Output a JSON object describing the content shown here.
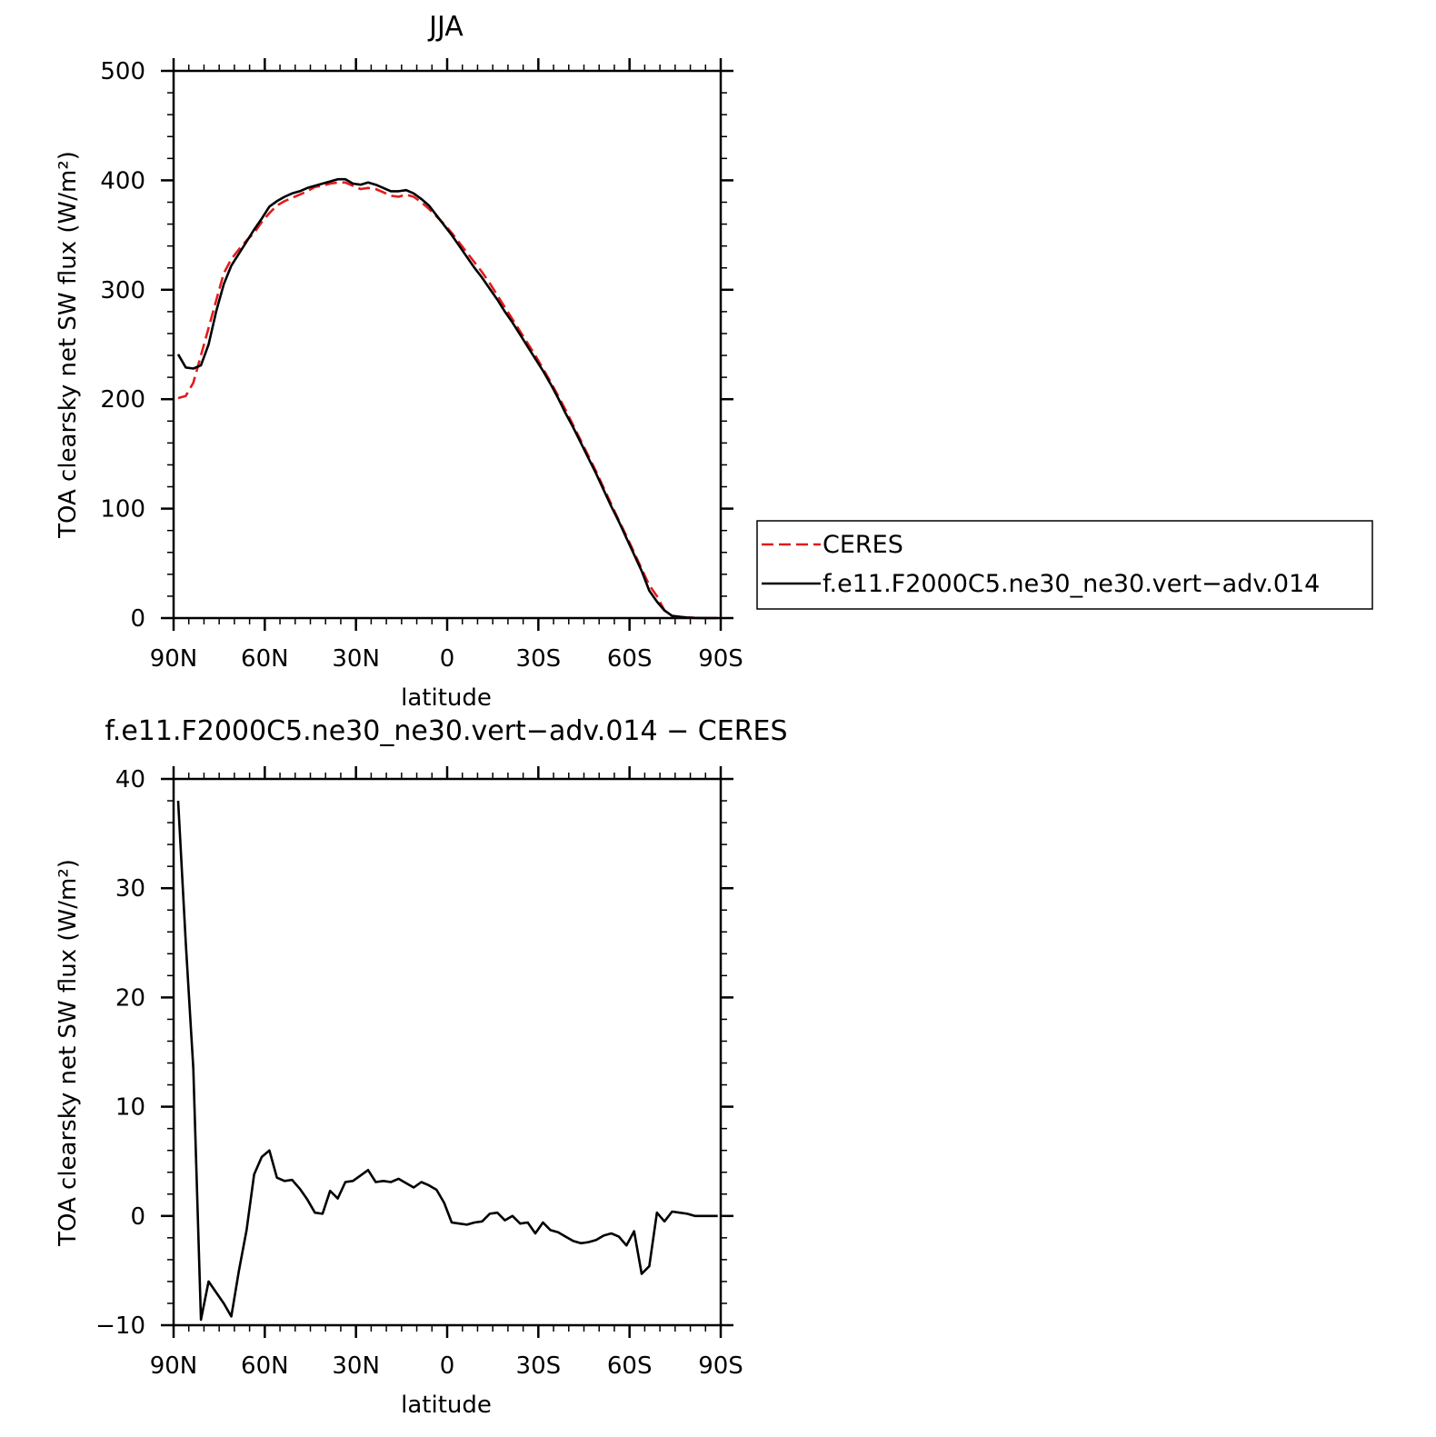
{
  "chart_data": [
    {
      "type": "line",
      "title": "JJA",
      "xlabel": "latitude",
      "ylabel": "TOA clearsky net SW flux (W/m²)",
      "xlim": [
        90,
        -90
      ],
      "ylim": [
        0,
        500
      ],
      "x_ticks": [
        {
          "value": 90,
          "label": "90N"
        },
        {
          "value": 60,
          "label": "60N"
        },
        {
          "value": 30,
          "label": "30N"
        },
        {
          "value": 0,
          "label": "0"
        },
        {
          "value": -30,
          "label": "30S"
        },
        {
          "value": -60,
          "label": "60S"
        },
        {
          "value": -90,
          "label": "90S"
        }
      ],
      "y_ticks": [
        {
          "value": 0,
          "label": "0"
        },
        {
          "value": 100,
          "label": "100"
        },
        {
          "value": 200,
          "label": "200"
        },
        {
          "value": 300,
          "label": "300"
        },
        {
          "value": 400,
          "label": "400"
        },
        {
          "value": 500,
          "label": "500"
        }
      ],
      "legend": {
        "placement": "right"
      },
      "series": [
        {
          "name": "CERES",
          "color": "#e41a1c",
          "style": "dashed",
          "points": [
            [
              88.5,
              201
            ],
            [
              86,
              203
            ],
            [
              83.5,
              215
            ],
            [
              81,
              240
            ],
            [
              78.5,
              265
            ],
            [
              76,
              290
            ],
            [
              73.5,
              315
            ],
            [
              71,
              328
            ],
            [
              68.5,
              337
            ],
            [
              66,
              345
            ],
            [
              63.5,
              352
            ],
            [
              61,
              362
            ],
            [
              58.5,
              370
            ],
            [
              56,
              377
            ],
            [
              53.5,
              381
            ],
            [
              51,
              384
            ],
            [
              48.5,
              387
            ],
            [
              46,
              390
            ],
            [
              43.5,
              394
            ],
            [
              41,
              395
            ],
            [
              38.5,
              397
            ],
            [
              36,
              398
            ],
            [
              33.5,
              398
            ],
            [
              31,
              395
            ],
            [
              28.5,
              392
            ],
            [
              26,
              393
            ],
            [
              23.5,
              392
            ],
            [
              21,
              389
            ],
            [
              18.5,
              386
            ],
            [
              16,
              385
            ],
            [
              13.5,
              387
            ],
            [
              11,
              385
            ],
            [
              8.5,
              380
            ],
            [
              6,
              374
            ],
            [
              3.5,
              367
            ],
            [
              1,
              360
            ],
            [
              -1.5,
              352
            ],
            [
              -4,
              343
            ],
            [
              -6.5,
              334
            ],
            [
              -9,
              325
            ],
            [
              -11.5,
              316
            ],
            [
              -14,
              306
            ],
            [
              -16.5,
              295
            ],
            [
              -19,
              284
            ],
            [
              -21.5,
              273
            ],
            [
              -24,
              262
            ],
            [
              -26.5,
              251
            ],
            [
              -29,
              240
            ],
            [
              -31.5,
              228
            ],
            [
              -34,
              216
            ],
            [
              -36.5,
              203
            ],
            [
              -39,
              190
            ],
            [
              -41.5,
              176
            ],
            [
              -44,
              162
            ],
            [
              -46.5,
              148
            ],
            [
              -49,
              134
            ],
            [
              -51.5,
              119
            ],
            [
              -54,
              104
            ],
            [
              -56.5,
              89
            ],
            [
              -59,
              75
            ],
            [
              -61.5,
              60
            ],
            [
              -64,
              45
            ],
            [
              -66.5,
              30
            ],
            [
              -69,
              20
            ],
            [
              -71.5,
              7
            ],
            [
              -74,
              2
            ],
            [
              -76.5,
              1
            ],
            [
              -79,
              0.5
            ],
            [
              -81.5,
              0.2
            ],
            [
              -84,
              0.1
            ],
            [
              -86.5,
              0
            ],
            [
              -89,
              0
            ]
          ]
        },
        {
          "name": "f.e11.F2000C5.ne30_ne30.vert−adv.014",
          "color": "#000000",
          "style": "solid",
          "points": [
            [
              88.5,
              241
            ],
            [
              86,
              229
            ],
            [
              83.5,
              228
            ],
            [
              81,
              231
            ],
            [
              78.5,
              250
            ],
            [
              76,
              280
            ],
            [
              73.5,
              305
            ],
            [
              71,
              322
            ],
            [
              68.5,
              333
            ],
            [
              66,
              344
            ],
            [
              63.5,
              355
            ],
            [
              61,
              365
            ],
            [
              58.5,
              376
            ],
            [
              56,
              381
            ],
            [
              53.5,
              385
            ],
            [
              51,
              388
            ],
            [
              48.5,
              390
            ],
            [
              46,
              393
            ],
            [
              43.5,
              395
            ],
            [
              41,
              397
            ],
            [
              38.5,
              399
            ],
            [
              36,
              401
            ],
            [
              33.5,
              401
            ],
            [
              31,
              397
            ],
            [
              28.5,
              396
            ],
            [
              26,
              398
            ],
            [
              23.5,
              396
            ],
            [
              21,
              393
            ],
            [
              18.5,
              390
            ],
            [
              16,
              390
            ],
            [
              13.5,
              391
            ],
            [
              11,
              388
            ],
            [
              8.5,
              383
            ],
            [
              6,
              377
            ],
            [
              3.5,
              368
            ],
            [
              1,
              359
            ],
            [
              -1.5,
              350
            ],
            [
              -4,
              340
            ],
            [
              -6.5,
              330
            ],
            [
              -9,
              320
            ],
            [
              -11.5,
              311
            ],
            [
              -14,
              301
            ],
            [
              -16.5,
              291
            ],
            [
              -19,
              280
            ],
            [
              -21.5,
              270
            ],
            [
              -24,
              259
            ],
            [
              -26.5,
              248
            ],
            [
              -29,
              237
            ],
            [
              -31.5,
              226
            ],
            [
              -34,
              214
            ],
            [
              -36.5,
              201
            ],
            [
              -39,
              187
            ],
            [
              -41.5,
              174
            ],
            [
              -44,
              160
            ],
            [
              -46.5,
              146
            ],
            [
              -49,
              132
            ],
            [
              -51.5,
              117
            ],
            [
              -54,
              102
            ],
            [
              -56.5,
              88
            ],
            [
              -59,
              73
            ],
            [
              -61.5,
              58
            ],
            [
              -64,
              43
            ],
            [
              -66.5,
              25
            ],
            [
              -69,
              15
            ],
            [
              -71.5,
              7
            ],
            [
              -74,
              2
            ],
            [
              -76.5,
              1.2
            ],
            [
              -79,
              0.5
            ],
            [
              -81.5,
              0.2
            ],
            [
              -84,
              0.1
            ],
            [
              -86.5,
              0
            ],
            [
              -89,
              0
            ]
          ]
        }
      ]
    },
    {
      "type": "line",
      "title": "f.e11.F2000C5.ne30_ne30.vert−adv.014 − CERES",
      "xlabel": "latitude",
      "ylabel": "TOA clearsky net SW flux (W/m²)",
      "xlim": [
        90,
        -90
      ],
      "ylim": [
        -10,
        40
      ],
      "x_ticks": [
        {
          "value": 90,
          "label": "90N"
        },
        {
          "value": 60,
          "label": "60N"
        },
        {
          "value": 30,
          "label": "30N"
        },
        {
          "value": 0,
          "label": "0"
        },
        {
          "value": -30,
          "label": "30S"
        },
        {
          "value": -60,
          "label": "60S"
        },
        {
          "value": -90,
          "label": "90S"
        }
      ],
      "y_ticks": [
        {
          "value": -10,
          "label": "−10"
        },
        {
          "value": 0,
          "label": "0"
        },
        {
          "value": 10,
          "label": "10"
        },
        {
          "value": 20,
          "label": "20"
        },
        {
          "value": 30,
          "label": "30"
        },
        {
          "value": 40,
          "label": "40"
        }
      ],
      "series": [
        {
          "color": "#000000",
          "style": "solid",
          "points": [
            [
              88.5,
              38
            ],
            [
              86,
              25
            ],
            [
              83.5,
              13.5
            ],
            [
              81,
              -9.5
            ],
            [
              78.5,
              -6
            ],
            [
              76,
              -7
            ],
            [
              73.5,
              -8
            ],
            [
              71,
              -9.2
            ],
            [
              68.5,
              -5
            ],
            [
              66,
              -1.3
            ],
            [
              63.5,
              3.8
            ],
            [
              61,
              5.4
            ],
            [
              58.5,
              6
            ],
            [
              56,
              3.5
            ],
            [
              53.5,
              3.2
            ],
            [
              51,
              3.3
            ],
            [
              48.5,
              2.5
            ],
            [
              46,
              1.5
            ],
            [
              43.5,
              0.3
            ],
            [
              41,
              0.2
            ],
            [
              38.5,
              2.3
            ],
            [
              36,
              1.6
            ],
            [
              33.5,
              3.1
            ],
            [
              31,
              3.2
            ],
            [
              28.5,
              3.7
            ],
            [
              26,
              4.2
            ],
            [
              23.5,
              3.1
            ],
            [
              21,
              3.2
            ],
            [
              18.5,
              3.1
            ],
            [
              16,
              3.4
            ],
            [
              13.5,
              3
            ],
            [
              11,
              2.6
            ],
            [
              8.5,
              3.1
            ],
            [
              6,
              2.8
            ],
            [
              3.5,
              2.4
            ],
            [
              1,
              1.2
            ],
            [
              -1.5,
              -0.6
            ],
            [
              -4,
              -0.7
            ],
            [
              -6.5,
              -0.8
            ],
            [
              -9,
              -0.6
            ],
            [
              -11.5,
              -0.5
            ],
            [
              -14,
              0.2
            ],
            [
              -16.5,
              0.3
            ],
            [
              -19,
              -0.4
            ],
            [
              -21.5,
              0
            ],
            [
              -24,
              -0.7
            ],
            [
              -26.5,
              -0.6
            ],
            [
              -29,
              -1.6
            ],
            [
              -31.5,
              -0.6
            ],
            [
              -34,
              -1.3
            ],
            [
              -36.5,
              -1.5
            ],
            [
              -39,
              -1.9
            ],
            [
              -41.5,
              -2.3
            ],
            [
              -44,
              -2.5
            ],
            [
              -46.5,
              -2.4
            ],
            [
              -49,
              -2.2
            ],
            [
              -51.5,
              -1.8
            ],
            [
              -54,
              -1.6
            ],
            [
              -56.5,
              -1.9
            ],
            [
              -59,
              -2.7
            ],
            [
              -61.5,
              -1.4
            ],
            [
              -64,
              -5.3
            ],
            [
              -66.5,
              -4.6
            ],
            [
              -69,
              0.3
            ],
            [
              -71.5,
              -0.5
            ],
            [
              -74,
              0.4
            ],
            [
              -76.5,
              0.3
            ],
            [
              -79,
              0.2
            ],
            [
              -81.5,
              0
            ],
            [
              -84,
              0
            ],
            [
              -86.5,
              0
            ],
            [
              -89,
              0
            ]
          ]
        }
      ]
    }
  ]
}
